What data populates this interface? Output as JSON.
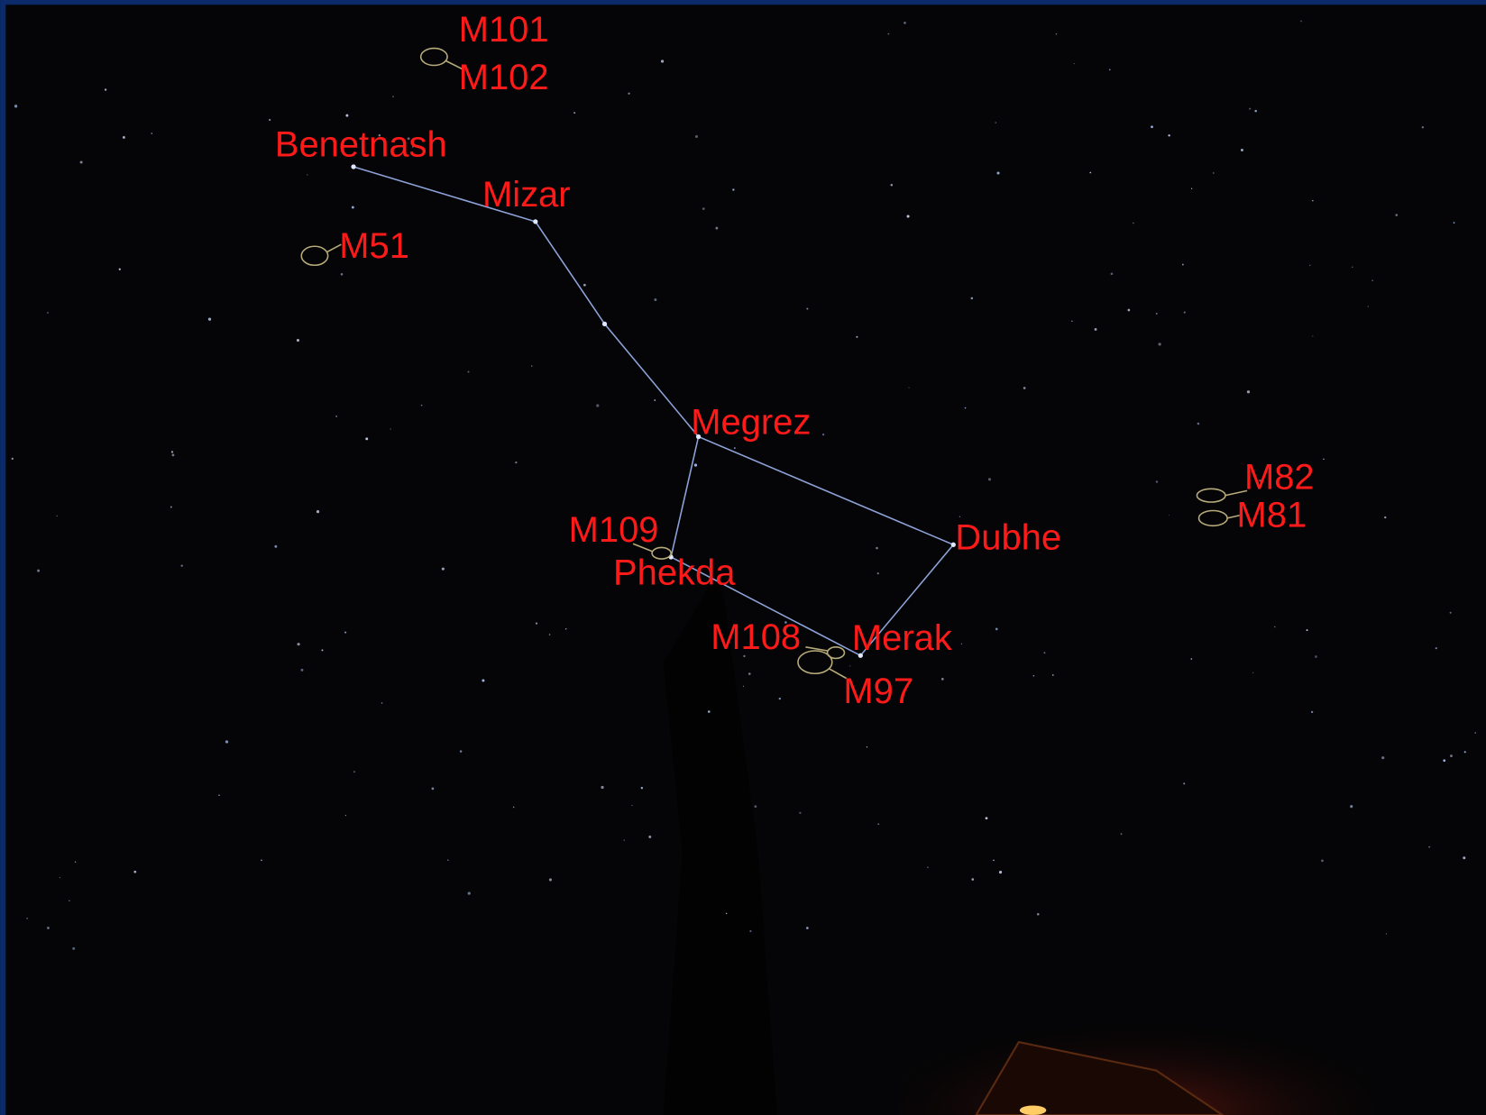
{
  "stars": [
    "Benetnash",
    "Mizar",
    "Megrez",
    "Phekda",
    "Dubhe",
    "Merak"
  ],
  "deep_sky_objects": [
    "M101",
    "M102",
    "M51",
    "M109",
    "M108",
    "M97",
    "M82",
    "M81"
  ]
}
